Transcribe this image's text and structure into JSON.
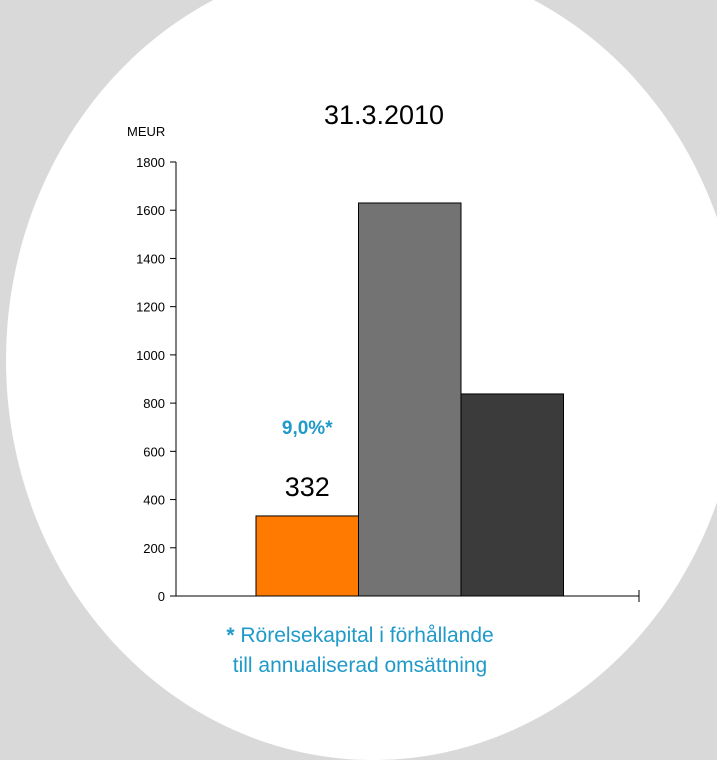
{
  "chart_data": {
    "type": "bar",
    "title": "31.3.2010",
    "ylabel": "MEUR",
    "ylim": [
      0,
      1800
    ],
    "yticks": [
      0,
      200,
      400,
      600,
      800,
      1000,
      1200,
      1400,
      1600,
      1800
    ],
    "grid": false,
    "bars": [
      {
        "value": 332,
        "color": "#ff7a00",
        "label": "332",
        "annotation": "9,0%*"
      },
      {
        "value": 1630,
        "color": "#737373"
      },
      {
        "value": 838,
        "color": "#3b3b3b"
      }
    ]
  },
  "footnote": {
    "star": "*",
    "line1": "Rörelsekapital i förhållande",
    "line2": "till annualiserad omsättning"
  },
  "colors": {
    "accent": "#1f9ac9",
    "background": "#d9d9d9",
    "circle": "#ffffff"
  }
}
